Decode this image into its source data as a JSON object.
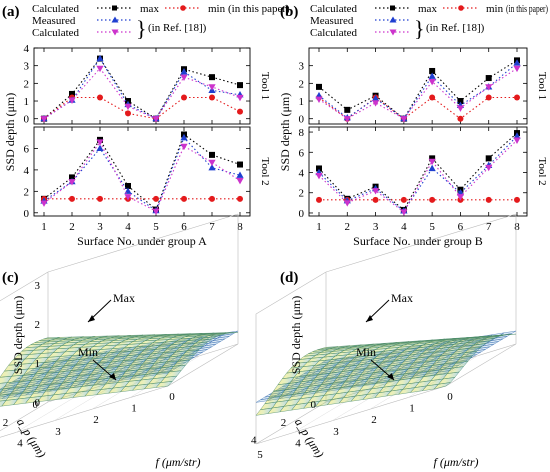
{
  "panels": {
    "a": "(a)",
    "b": "(b)",
    "c": "(c)",
    "d": "(d)"
  },
  "legend": {
    "calculated": "Calculated",
    "measured": "Measured",
    "max": "max",
    "min": "min",
    "in_this_paper": "(in this paper)",
    "in_ref": "(in Ref. [18])"
  },
  "colors": {
    "max": "#000000",
    "min": "#e41a1c",
    "measured": "#1f3fd0",
    "calc_ref": "#cc33cc",
    "surface_max": "#e8c800",
    "surface_min": "#2aa0b8"
  },
  "chart_data": [
    {
      "type": "line",
      "panel": "a",
      "xlabel": "Surface No. under group A",
      "ylabel": "SSD depth (μm)",
      "x": [
        1,
        2,
        3,
        4,
        5,
        6,
        7,
        8
      ],
      "subplots": [
        {
          "label": "Tool 1",
          "ylim": [
            -0.3,
            4
          ],
          "yticks": [
            0,
            1,
            2,
            3,
            4
          ],
          "series": [
            {
              "name": "max",
              "values": [
                0.0,
                1.4,
                3.4,
                1.0,
                0.0,
                2.8,
                2.35,
                1.9
              ]
            },
            {
              "name": "min",
              "values": [
                0.0,
                1.2,
                1.2,
                0.3,
                0.0,
                1.2,
                1.2,
                0.4
              ]
            },
            {
              "name": "Measured",
              "values": [
                0.0,
                1.05,
                3.4,
                0.8,
                0.0,
                2.65,
                1.6,
                1.35
              ]
            },
            {
              "name": "Calculated",
              "values": [
                0.0,
                1.05,
                2.85,
                0.7,
                0.0,
                2.35,
                1.8,
                1.2
              ]
            }
          ]
        },
        {
          "label": "Tool 2",
          "ylim": [
            -0.3,
            8
          ],
          "yticks": [
            0,
            2,
            4,
            6
          ],
          "series": [
            {
              "name": "max",
              "values": [
                1.3,
                3.3,
                6.8,
                2.5,
                0.3,
                7.3,
                5.4,
                4.5
              ]
            },
            {
              "name": "min",
              "values": [
                1.3,
                1.3,
                1.3,
                1.3,
                1.3,
                1.3,
                1.3,
                1.3
              ]
            },
            {
              "name": "Measured",
              "values": [
                1.1,
                2.9,
                6.0,
                2.0,
                0.2,
                7.0,
                4.2,
                3.5
              ]
            },
            {
              "name": "Calculated",
              "values": [
                0.9,
                2.9,
                6.6,
                1.5,
                0.15,
                6.2,
                4.7,
                3.0
              ]
            }
          ]
        }
      ]
    },
    {
      "type": "line",
      "panel": "b",
      "xlabel": "Surface No. under group B",
      "ylabel": "SSD depth (μm)",
      "x": [
        1,
        2,
        3,
        4,
        5,
        6,
        7,
        8
      ],
      "subplots": [
        {
          "label": "Tool 1",
          "ylim": [
            -0.3,
            4
          ],
          "yticks": [
            0,
            1,
            2,
            3
          ],
          "series": [
            {
              "name": "max",
              "values": [
                1.8,
                0.5,
                1.3,
                0.0,
                2.7,
                1.0,
                2.3,
                3.3
              ]
            },
            {
              "name": "min",
              "values": [
                1.2,
                0.0,
                1.2,
                0.0,
                1.2,
                0.0,
                1.2,
                1.2
              ]
            },
            {
              "name": "Measured",
              "values": [
                1.3,
                0.05,
                1.15,
                0.0,
                2.4,
                0.75,
                1.8,
                3.15
              ]
            },
            {
              "name": "Calculated",
              "values": [
                1.1,
                0.0,
                0.9,
                0.0,
                2.1,
                0.6,
                1.8,
                2.85
              ]
            }
          ]
        },
        {
          "label": "Tool 2",
          "ylim": [
            -0.3,
            8.5
          ],
          "yticks": [
            0,
            2,
            4,
            6,
            8
          ],
          "series": [
            {
              "name": "max",
              "values": [
                4.4,
                1.4,
                2.6,
                0.3,
                5.4,
                2.3,
                5.4,
                7.9
              ]
            },
            {
              "name": "min",
              "values": [
                1.3,
                1.3,
                1.3,
                1.3,
                1.3,
                1.3,
                1.3,
                1.3
              ]
            },
            {
              "name": "Measured",
              "values": [
                4.0,
                1.2,
                2.4,
                0.2,
                4.4,
                2.0,
                4.7,
                7.6
              ]
            },
            {
              "name": "Calculated",
              "values": [
                3.7,
                1.0,
                2.2,
                0.1,
                5.1,
                1.6,
                4.5,
                7.2
              ]
            }
          ]
        }
      ]
    },
    {
      "type": "surface",
      "panel": "c",
      "zlabel": "SSD depth (μm)",
      "xlabel": "f (μm/str)",
      "ylabel": "a_p (μm)",
      "zticks": [
        "0",
        "1",
        "2",
        "3"
      ],
      "xticks": [
        "0",
        "1",
        "2",
        "3",
        "4",
        "5"
      ],
      "yticks": [
        "0",
        "2",
        "4"
      ],
      "annotations": [
        "Max",
        "Min"
      ]
    },
    {
      "type": "surface",
      "panel": "d",
      "zlabel": "SSD depth (μm)",
      "xlabel": "f (μm/str)",
      "ylabel": "a_p (μm)",
      "xticks": [
        "0",
        "1",
        "2",
        "3",
        "4",
        "5"
      ],
      "yticks": [
        "0",
        "2",
        "4"
      ],
      "annotations": [
        "Max",
        "Min"
      ]
    }
  ]
}
